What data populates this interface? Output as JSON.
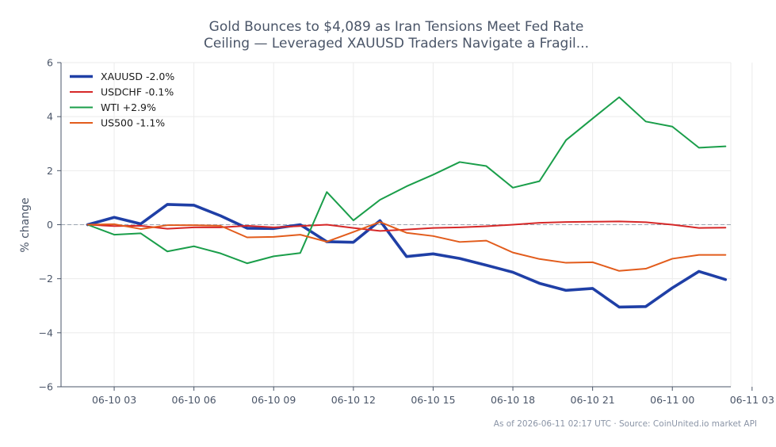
{
  "chart_data": {
    "type": "line",
    "title_line1": "Gold Bounces to $4,089 as Iran Tensions Meet Fed Rate",
    "title_line2": "Ceiling — Leveraged XAUUSD Traders Navigate a Fragil...",
    "ylabel": "% change",
    "ylim": [
      -6,
      6
    ],
    "yticks": [
      6,
      4,
      2,
      0,
      -2,
      -4,
      -6
    ],
    "ytick_labels": [
      "6",
      "4",
      "2",
      "0",
      "−2",
      "−4",
      "−6"
    ],
    "xlim": [
      -1.0,
      24.2
    ],
    "xticks": [
      1,
      4,
      7,
      10,
      13,
      16,
      19,
      22,
      25
    ],
    "xtick_labels": [
      "06-10 03",
      "06-10 06",
      "06-10 09",
      "06-10 12",
      "06-10 15",
      "06-10 18",
      "06-10 21",
      "06-11 00",
      "06-11 03"
    ],
    "x": [
      "06-10 02",
      "06-10 03",
      "06-10 04",
      "06-10 05",
      "06-10 06",
      "06-10 07",
      "06-10 08",
      "06-10 09",
      "06-10 10",
      "06-10 11",
      "06-10 12",
      "06-10 13",
      "06-10 14",
      "06-10 15",
      "06-10 16",
      "06-10 17",
      "06-10 18",
      "06-10 19",
      "06-10 20",
      "06-10 21",
      "06-10 22",
      "06-10 23",
      "06-11 00",
      "06-11 01",
      "06-11 02"
    ],
    "grid": true,
    "zero_line": true,
    "legend_position": "top-left",
    "series": [
      {
        "name": "XAUUSD -2.0%",
        "color": "#1f3fa6",
        "width": 3.6,
        "values": [
          0.0,
          0.27,
          0.03,
          0.75,
          0.72,
          0.33,
          -0.13,
          -0.14,
          0.0,
          -0.63,
          -0.65,
          0.15,
          -1.18,
          -1.08,
          -1.25,
          -1.5,
          -1.76,
          -2.17,
          -2.43,
          -2.36,
          -3.05,
          -3.03,
          -2.34,
          -1.73,
          -2.03
        ]
      },
      {
        "name": "USDCHF -0.1%",
        "color": "#d62828",
        "width": 2,
        "values": [
          0.0,
          -0.05,
          -0.04,
          -0.15,
          -0.1,
          -0.1,
          -0.04,
          -0.1,
          -0.05,
          0.0,
          -0.12,
          -0.23,
          -0.18,
          -0.12,
          -0.1,
          -0.06,
          0.0,
          0.07,
          0.1,
          0.11,
          0.12,
          0.09,
          0.0,
          -0.12,
          -0.11
        ]
      },
      {
        "name": "WTI +2.9%",
        "color": "#1a9e4a",
        "width": 2,
        "values": [
          0.0,
          -0.37,
          -0.32,
          -0.99,
          -0.8,
          -1.06,
          -1.43,
          -1.17,
          -1.05,
          1.21,
          0.16,
          0.92,
          1.42,
          1.85,
          2.32,
          2.17,
          1.37,
          1.61,
          3.13,
          3.93,
          4.72,
          3.82,
          3.63,
          2.85,
          2.9
        ]
      },
      {
        "name": "US500 -1.1%",
        "color": "#e25c1c",
        "width": 2,
        "values": [
          0.0,
          0.02,
          -0.16,
          -0.02,
          -0.02,
          -0.04,
          -0.47,
          -0.45,
          -0.37,
          -0.63,
          -0.27,
          0.1,
          -0.3,
          -0.42,
          -0.64,
          -0.59,
          -1.03,
          -1.27,
          -1.41,
          -1.39,
          -1.71,
          -1.63,
          -1.26,
          -1.12,
          -1.12
        ]
      }
    ],
    "colors": {
      "axis": "#4a5568",
      "grid": "#ebebeb",
      "zero": "#9aa3b0"
    }
  },
  "footer": {
    "source": "As of 2026-06-11 02:17 UTC · Source: CoinUnited.io market API"
  }
}
